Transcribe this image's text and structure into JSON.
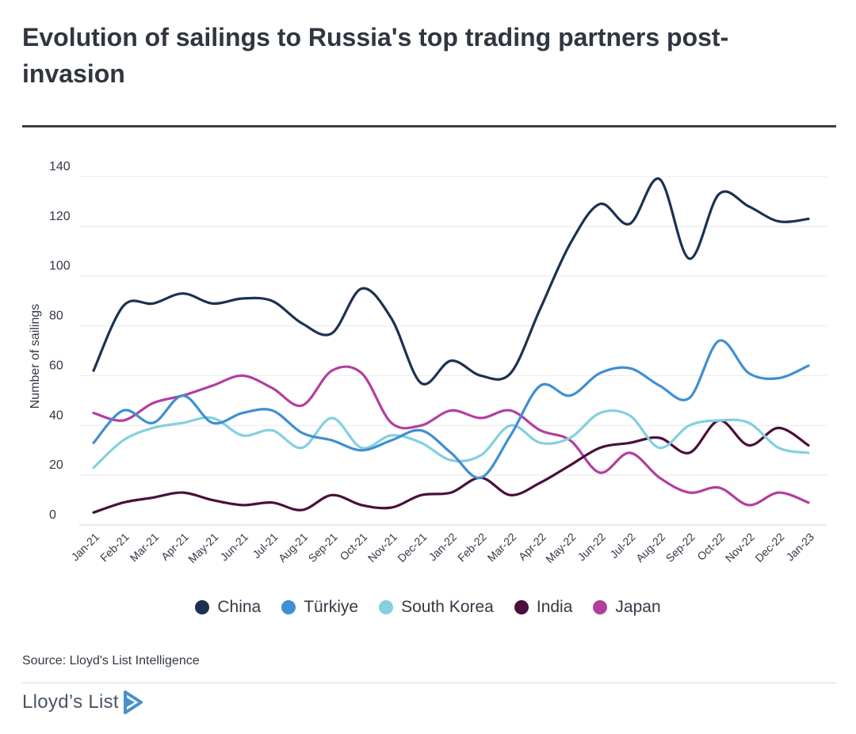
{
  "header": {
    "title": "Evolution of sailings to Russia's top trading partners post-invasion"
  },
  "footer": {
    "source": "Source: Lloyd's List Intelligence",
    "brand": "Lloyd’s List"
  },
  "colors": {
    "china": "#1b3250",
    "turkiye": "#3f8fd2",
    "south_korea": "#83d0df",
    "india": "#4a0f3c",
    "japan": "#b23f9f",
    "brand_icon": "#4a90c8"
  },
  "icons": {
    "brand": "play-triangle-icon"
  },
  "chart_data": {
    "type": "line",
    "title": "Evolution of sailings to Russia's top trading partners post-invasion",
    "xlabel": "",
    "ylabel": "Number of sailings",
    "ylim": [
      0,
      140
    ],
    "yticks": [
      0,
      20,
      40,
      60,
      80,
      100,
      120,
      140
    ],
    "grid": true,
    "legend_position": "bottom",
    "x": [
      "Jan-21",
      "Feb-21",
      "Mar-21",
      "Apr-21",
      "May-21",
      "Jun-21",
      "Jul-21",
      "Aug-21",
      "Sep-21",
      "Oct-21",
      "Nov-21",
      "Dec-21",
      "Jan-22",
      "Feb-22",
      "Mar-22",
      "Apr-22",
      "May-22",
      "Jun-22",
      "Jul-22",
      "Aug-22",
      "Sep-22",
      "Oct-22",
      "Nov-22",
      "Dec-22",
      "Jan-23"
    ],
    "series": [
      {
        "name": "China",
        "color": "#1b3250",
        "values": [
          62,
          88,
          89,
          93,
          89,
          91,
          90,
          81,
          77,
          95,
          83,
          57,
          66,
          60,
          61,
          87,
          113,
          129,
          121,
          139,
          107,
          133,
          128,
          122,
          123
        ]
      },
      {
        "name": "Türkiye",
        "color": "#3f8fd2",
        "values": [
          33,
          46,
          41,
          52,
          41,
          45,
          46,
          37,
          34,
          30,
          34,
          38,
          29,
          19,
          36,
          56,
          52,
          61,
          63,
          56,
          51,
          74,
          61,
          59,
          64
        ]
      },
      {
        "name": "South Korea",
        "color": "#83d0df",
        "values": [
          23,
          34,
          39,
          41,
          43,
          36,
          38,
          31,
          43,
          31,
          36,
          33,
          26,
          28,
          40,
          33,
          35,
          45,
          44,
          31,
          40,
          42,
          41,
          31,
          29
        ]
      },
      {
        "name": "India",
        "color": "#4a0f3c",
        "values": [
          5,
          9,
          11,
          13,
          10,
          8,
          9,
          6,
          12,
          8,
          7,
          12,
          13,
          19,
          12,
          17,
          24,
          31,
          33,
          35,
          29,
          42,
          32,
          39,
          32
        ]
      },
      {
        "name": "Japan",
        "color": "#b23f9f",
        "values": [
          45,
          42,
          49,
          52,
          56,
          60,
          55,
          48,
          62,
          61,
          41,
          40,
          46,
          43,
          46,
          38,
          34,
          21,
          29,
          19,
          13,
          15,
          8,
          13,
          9
        ]
      }
    ]
  }
}
